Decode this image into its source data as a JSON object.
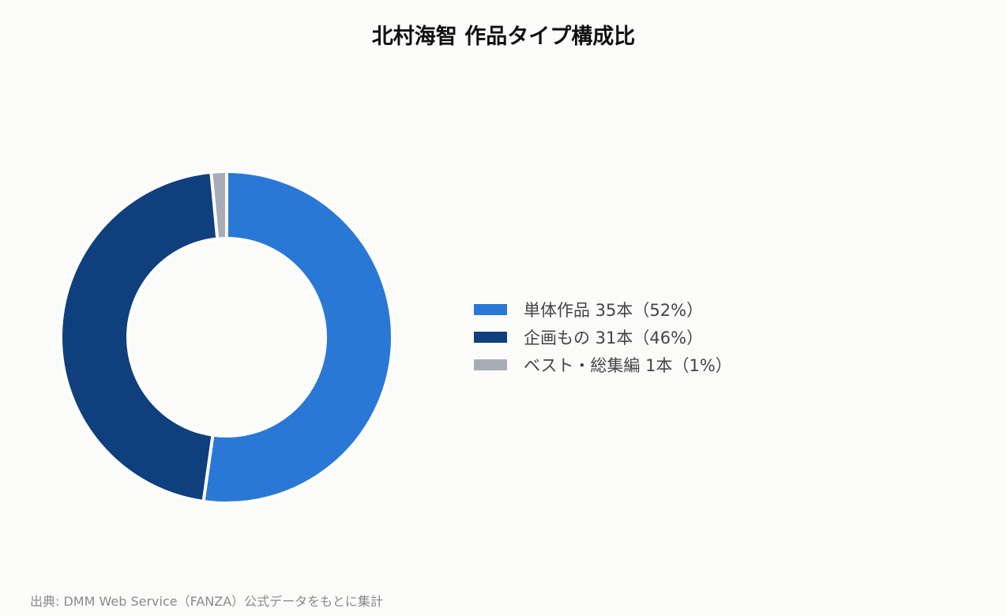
{
  "chart_data": {
    "type": "pie",
    "variant": "donut",
    "title": "北村海智 作品タイプ構成比",
    "categories": [
      "単体作品",
      "企画もの",
      "ベスト・総集編"
    ],
    "values": [
      35,
      31,
      1
    ],
    "unit": "本",
    "legend": [
      {
        "label": "単体作品 35本（52%）",
        "color": "#2a78d6"
      },
      {
        "label": "企画もの 31本（46%）",
        "color": "#0f3f7d"
      },
      {
        "label": "ベスト・総集編 1本（1%）",
        "color": "#a8adb5"
      }
    ],
    "legend_position": "right",
    "start_angle": "top",
    "direction": "clockwise"
  },
  "source_note": "出典: DMM Web Service（FANZA）公式データをもとに集計"
}
